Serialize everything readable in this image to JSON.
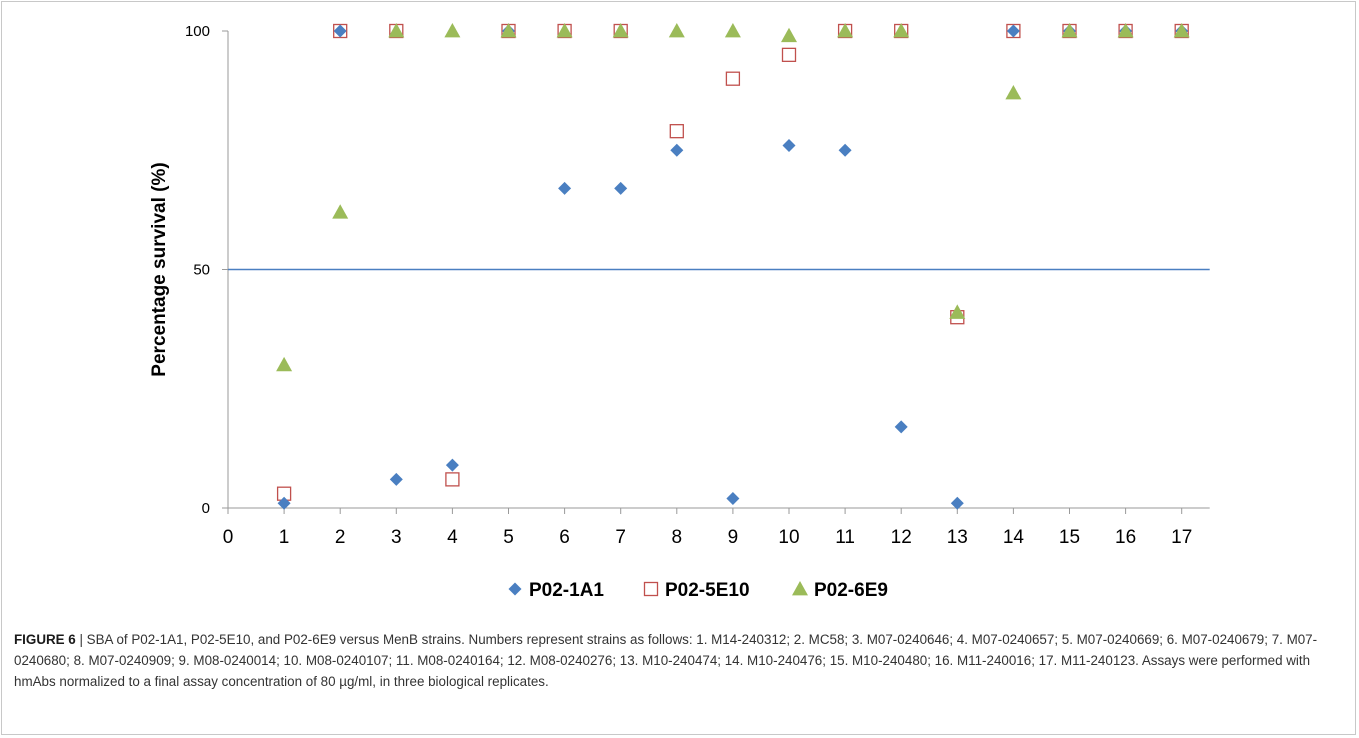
{
  "chart_data": {
    "type": "scatter",
    "title": "",
    "xlabel": "",
    "ylabel": "Percentage survival (%)",
    "xlim": [
      0,
      17
    ],
    "ylim": [
      0,
      100
    ],
    "x_ticks": [
      0,
      1,
      2,
      3,
      4,
      5,
      6,
      7,
      8,
      9,
      10,
      11,
      12,
      13,
      14,
      15,
      16,
      17
    ],
    "y_ticks": [
      0,
      50,
      100
    ],
    "grid": false,
    "legend_position": "bottom",
    "reference_line": {
      "y": 50,
      "color": "#4a7fc1"
    },
    "series": [
      {
        "name": "P02-1A1",
        "marker": "diamond",
        "color": "#4a7fc1",
        "points": [
          [
            1,
            1
          ],
          [
            2,
            100
          ],
          [
            3,
            6
          ],
          [
            4,
            9
          ],
          [
            5,
            100
          ],
          [
            6,
            67
          ],
          [
            7,
            67
          ],
          [
            8,
            75
          ],
          [
            9,
            2
          ],
          [
            10,
            76
          ],
          [
            11,
            75
          ],
          [
            12,
            17
          ],
          [
            13,
            1
          ],
          [
            14,
            100
          ],
          [
            15,
            100
          ],
          [
            16,
            100
          ],
          [
            17,
            100
          ]
        ]
      },
      {
        "name": "P02-5E10",
        "marker": "square-open",
        "color": "#c0504d",
        "points": [
          [
            1,
            3
          ],
          [
            2,
            100
          ],
          [
            3,
            100
          ],
          [
            4,
            6
          ],
          [
            5,
            100
          ],
          [
            6,
            100
          ],
          [
            7,
            100
          ],
          [
            8,
            79
          ],
          [
            9,
            90
          ],
          [
            10,
            95
          ],
          [
            11,
            100
          ],
          [
            12,
            100
          ],
          [
            13,
            40
          ],
          [
            14,
            100
          ],
          [
            15,
            100
          ],
          [
            16,
            100
          ],
          [
            17,
            100
          ]
        ]
      },
      {
        "name": "P02-6E9",
        "marker": "triangle",
        "color": "#9bbb59",
        "points": [
          [
            1,
            30
          ],
          [
            2,
            62
          ],
          [
            3,
            100
          ],
          [
            4,
            100
          ],
          [
            5,
            100
          ],
          [
            6,
            100
          ],
          [
            7,
            100
          ],
          [
            8,
            100
          ],
          [
            9,
            100
          ],
          [
            10,
            99
          ],
          [
            11,
            100
          ],
          [
            12,
            100
          ],
          [
            13,
            41
          ],
          [
            14,
            87
          ],
          [
            15,
            100
          ],
          [
            16,
            100
          ],
          [
            17,
            100
          ]
        ]
      }
    ]
  },
  "caption": {
    "label": "FIGURE 6",
    "text": " | SBA of P02-1A1, P02-5E10, and P02-6E9 versus MenB strains. Numbers represent strains as follows: 1. M14-240312; 2. MC58; 3. M07-0240646; 4. M07-0240657; 5. M07-0240669; 6. M07-0240679; 7. M07-0240680; 8. M07-0240909; 9. M08-0240014; 10. M08-0240107; 11. M08-0240164; 12. M08-0240276; 13. M10-240474; 14. M10-240476; 15. M10-240480; 16. M11-240016; 17. M11-240123. Assays were performed with hmAbs normalized to a final assay concentration of 80 µg/ml, in three biological replicates."
  }
}
